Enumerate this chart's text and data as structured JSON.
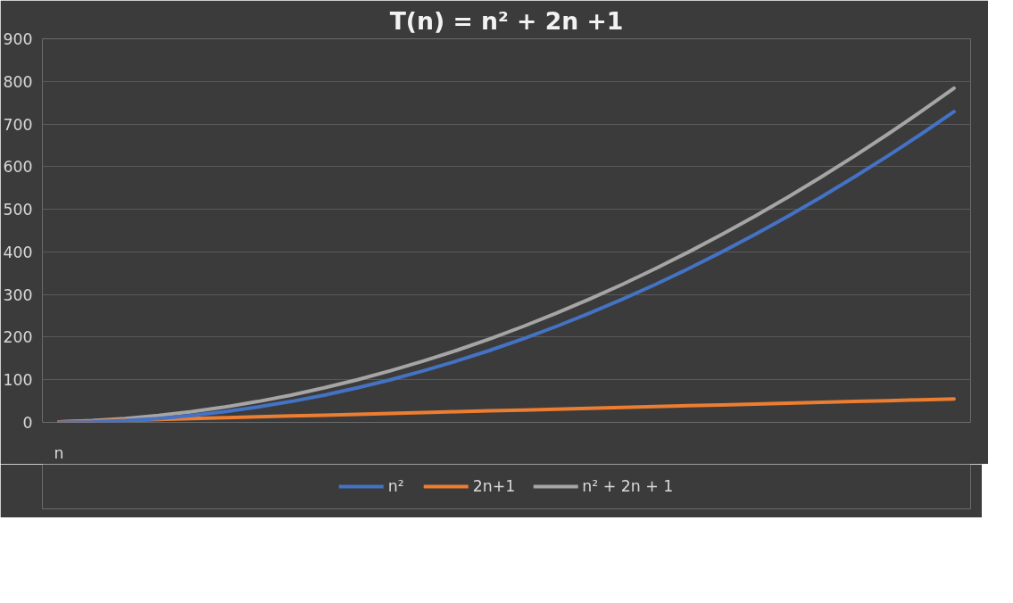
{
  "chart_data": {
    "type": "line",
    "title": "T(n) = n² + 2n +1",
    "categories": [
      "n",
      null,
      null,
      null,
      null,
      null,
      null,
      null,
      null,
      null,
      null,
      null,
      null,
      null,
      null,
      null,
      null,
      null,
      null,
      null,
      null,
      null,
      null,
      null,
      null,
      null,
      null,
      null
    ],
    "series": [
      {
        "name": "n²",
        "color": "#4472c4",
        "values": [
          0,
          1,
          4,
          9,
          16,
          25,
          36,
          49,
          64,
          81,
          100,
          121,
          144,
          169,
          196,
          225,
          256,
          289,
          324,
          361,
          400,
          441,
          484,
          529,
          576,
          625,
          676,
          729
        ]
      },
      {
        "name": "2n+1",
        "color": "#ed7d31",
        "values": [
          1,
          3,
          5,
          7,
          9,
          11,
          13,
          15,
          17,
          19,
          21,
          23,
          25,
          27,
          29,
          31,
          33,
          35,
          37,
          39,
          41,
          43,
          45,
          47,
          49,
          51,
          53,
          55
        ]
      },
      {
        "name": "n² + 2n + 1",
        "color": "#a5a5a5",
        "values": [
          1,
          4,
          9,
          16,
          25,
          36,
          49,
          64,
          81,
          100,
          121,
          144,
          169,
          196,
          225,
          256,
          289,
          324,
          361,
          400,
          441,
          484,
          529,
          576,
          625,
          676,
          729,
          784
        ]
      }
    ],
    "ylim": [
      0,
      900
    ],
    "yticks": [
      0,
      100,
      200,
      300,
      400,
      500,
      600,
      700,
      800,
      900
    ],
    "grid": "y",
    "legend": "bottom",
    "marker": "none",
    "line_style": "solid"
  }
}
